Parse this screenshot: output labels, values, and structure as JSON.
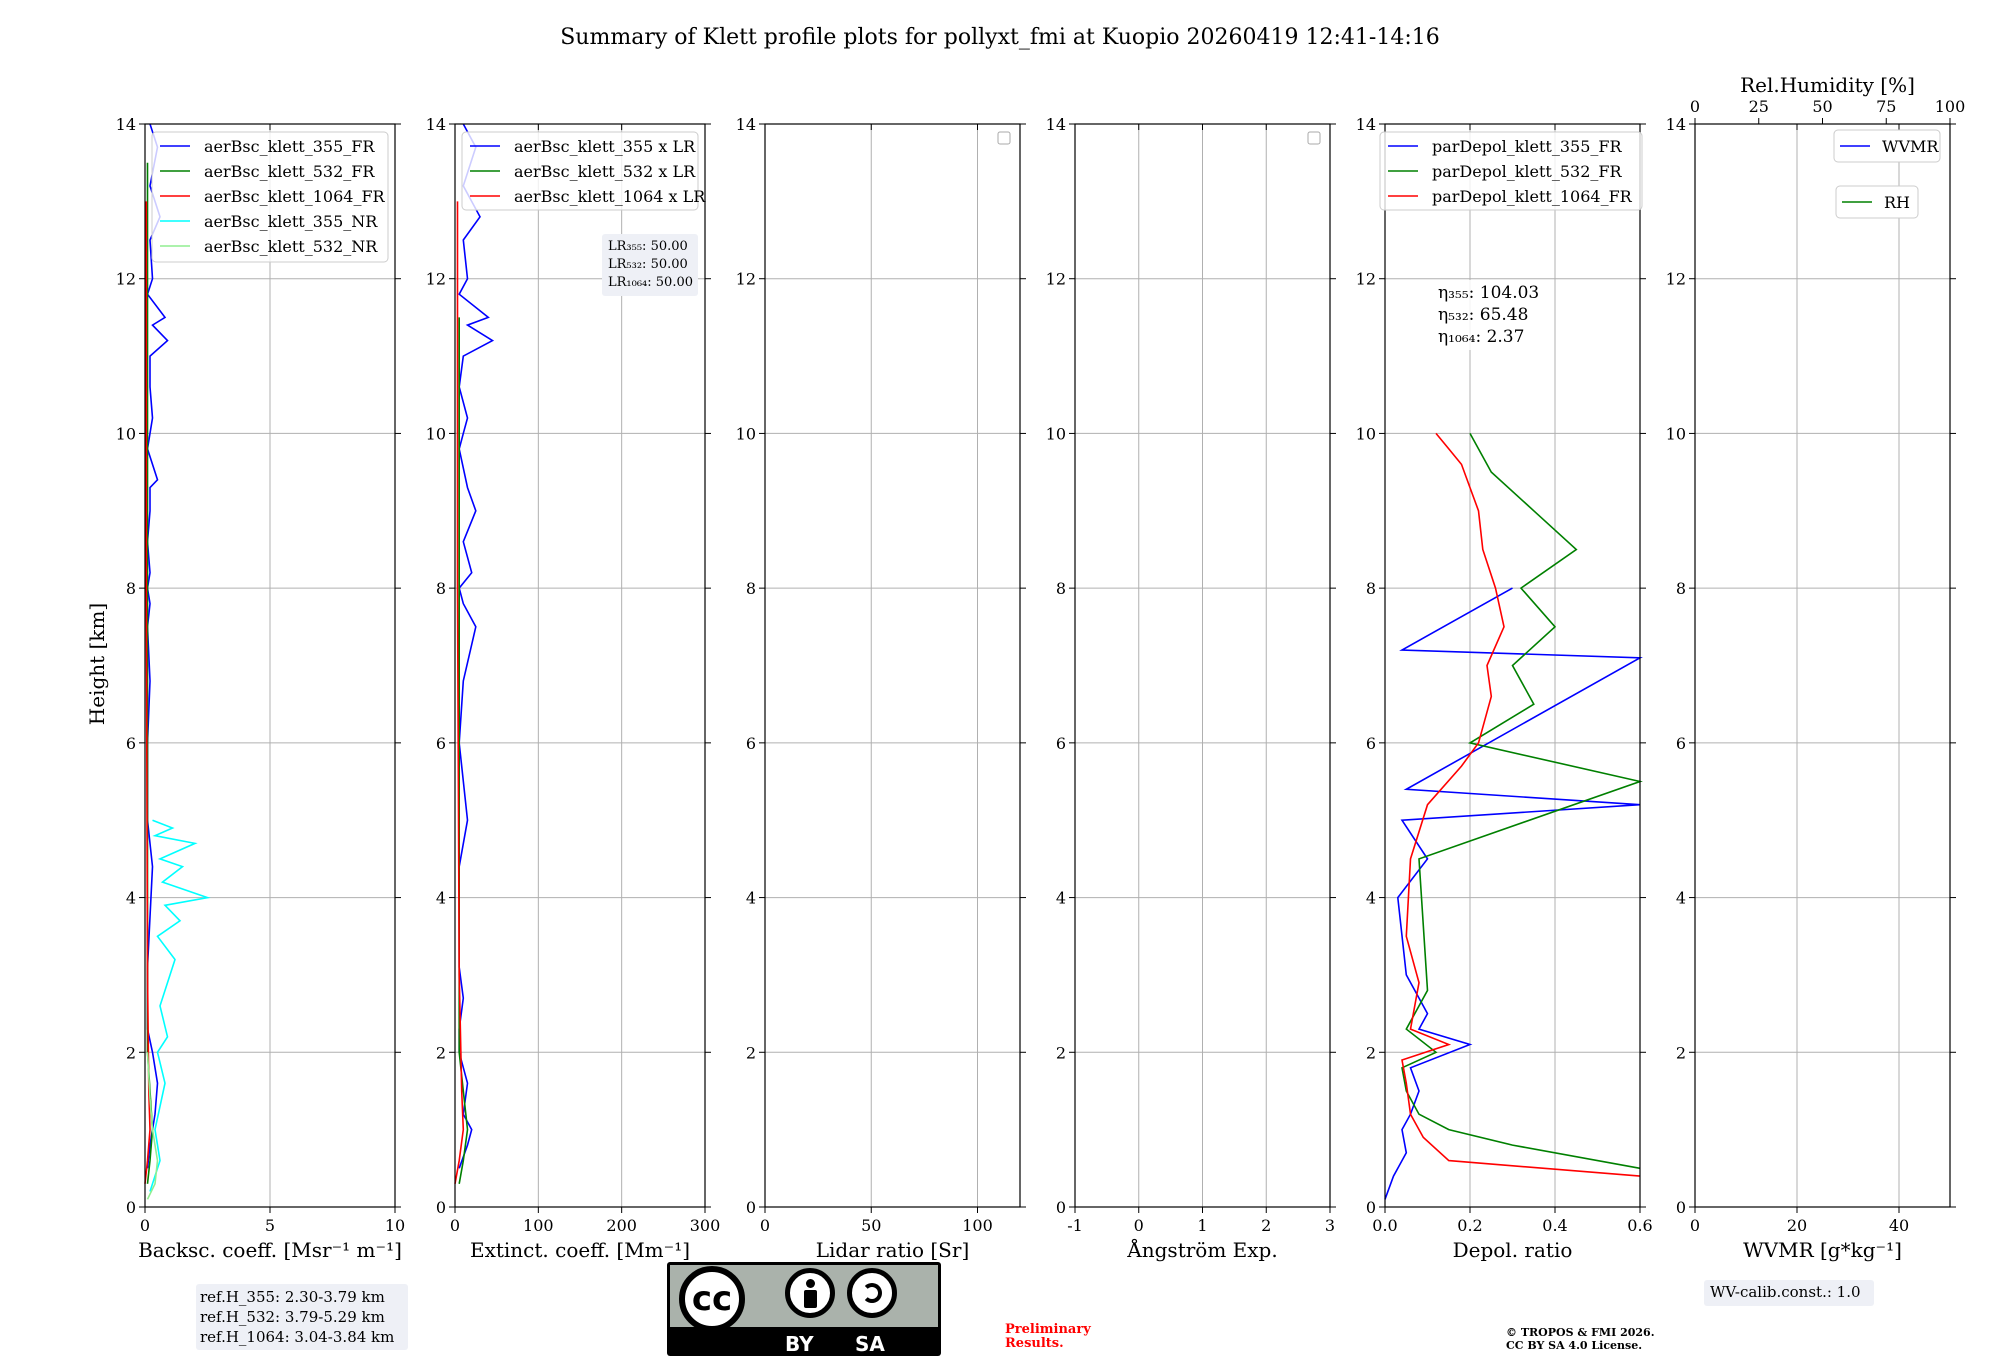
{
  "title": "Summary of Klett profile plots for pollyxt_fmi at Kuopio 20260419 12:41-14:16",
  "y_axis_label": "Height [km]",
  "chart_data": [
    {
      "type": "line",
      "panel": "backscatter",
      "xlabel": "Backsc. coeff. [Msr⁻¹ m⁻¹]",
      "xlim": [
        0,
        10
      ],
      "ylim": [
        0,
        14
      ],
      "xticks": [
        0,
        5,
        10
      ],
      "yticks": [
        0,
        2,
        4,
        6,
        8,
        10,
        12,
        14
      ],
      "legend": [
        "aerBsc_klett_355_FR",
        "aerBsc_klett_532_FR",
        "aerBsc_klett_1064_FR",
        "aerBsc_klett_355_NR",
        "aerBsc_klett_532_NR"
      ],
      "series": [
        {
          "name": "aerBsc_klett_355_FR",
          "color": "#0000ff",
          "x": [
            0.1,
            0.2,
            0.3,
            0.4,
            0.5,
            0.3,
            0.1,
            0.1,
            0.1,
            0.3,
            0.1,
            0.1,
            0.2,
            0.1,
            0.2,
            0.1,
            0.2,
            0.1,
            0.2,
            0.2,
            0.5,
            0.1,
            0.2,
            0.3,
            0.2,
            0.2,
            0.9,
            0.3,
            0.8,
            0.1,
            0.3,
            0.2,
            0.6,
            0.2,
            0.5,
            0.2
          ],
          "y": [
            0.5,
            0.8,
            1.0,
            1.2,
            1.6,
            2.0,
            2.3,
            2.7,
            3.1,
            4.4,
            5.0,
            6.0,
            6.8,
            7.5,
            7.8,
            8.0,
            8.2,
            8.6,
            9.0,
            9.3,
            9.4,
            9.8,
            10.0,
            10.2,
            10.6,
            11.0,
            11.2,
            11.4,
            11.5,
            11.8,
            12.0,
            12.5,
            12.8,
            13.2,
            13.7,
            14.0
          ]
        },
        {
          "name": "aerBsc_klett_532_FR",
          "color": "#008000",
          "x": [
            0.1,
            0.2,
            0.3,
            0.2,
            0.1,
            0.1,
            0.1,
            0.1,
            0.1
          ],
          "y": [
            0.3,
            0.6,
            1.0,
            1.5,
            2.0,
            4.0,
            7.8,
            11.5,
            13.5
          ]
        },
        {
          "name": "aerBsc_klett_1064_FR",
          "color": "#ff0000",
          "x": [
            0.0,
            0.1,
            0.2,
            0.15,
            0.1,
            0.05,
            0.05
          ],
          "y": [
            0.3,
            0.6,
            1.0,
            1.5,
            3.0,
            8.0,
            13.0
          ]
        },
        {
          "name": "aerBsc_klett_355_NR",
          "color": "#00ffff",
          "x": [
            0.2,
            0.6,
            0.4,
            0.8,
            0.5,
            0.9,
            0.6,
            1.2,
            0.5,
            1.4,
            0.8,
            2.5,
            0.7,
            1.5,
            0.6,
            2.0,
            0.4,
            1.1,
            0.3
          ],
          "y": [
            0.2,
            0.6,
            1.0,
            1.6,
            2.0,
            2.2,
            2.6,
            3.2,
            3.5,
            3.7,
            3.9,
            4.0,
            4.2,
            4.4,
            4.5,
            4.7,
            4.8,
            4.9,
            5.0
          ]
        },
        {
          "name": "aerBsc_klett_532_NR",
          "color": "#90ee90",
          "x": [
            0.1,
            0.4,
            0.5,
            0.3,
            0.2,
            0.1
          ],
          "y": [
            0.1,
            0.3,
            0.6,
            1.0,
            1.4,
            2.0
          ]
        }
      ],
      "reference_heights": [
        "ref.H_355: 2.30-3.79 km",
        "ref.H_532: 3.79-5.29 km",
        "ref.H_1064: 3.04-3.84 km"
      ]
    },
    {
      "type": "line",
      "panel": "extinction",
      "xlabel": "Extinct. coeff. [Mm⁻¹]",
      "xlim": [
        0,
        300
      ],
      "ylim": [
        0,
        14
      ],
      "xticks": [
        0,
        100,
        200,
        300
      ],
      "yticks": [
        0,
        2,
        4,
        6,
        8,
        10,
        12,
        14
      ],
      "legend": [
        "aerBsc_klett_355 x LR",
        "aerBsc_klett_532 x LR",
        "aerBsc_klett_1064 x LR"
      ],
      "series": [
        {
          "name": "aerBsc_klett_355 x LR",
          "color": "#0000ff",
          "x": [
            5,
            15,
            20,
            10,
            15,
            5,
            5,
            10,
            5,
            5,
            15,
            5,
            10,
            25,
            10,
            5,
            20,
            10,
            25,
            15,
            5,
            10,
            15,
            5,
            10,
            45,
            15,
            40,
            5,
            15,
            10,
            30,
            10,
            25,
            10
          ],
          "y": [
            0.5,
            0.8,
            1.0,
            1.2,
            1.6,
            2.0,
            2.3,
            2.7,
            3.1,
            4.4,
            5.0,
            6.0,
            6.8,
            7.5,
            7.8,
            8.0,
            8.2,
            8.6,
            9.0,
            9.3,
            9.8,
            10.0,
            10.2,
            10.6,
            11.0,
            11.2,
            11.4,
            11.5,
            11.8,
            12.0,
            12.5,
            12.8,
            13.2,
            13.7,
            14.0
          ]
        },
        {
          "name": "aerBsc_klett_532 x LR",
          "color": "#008000",
          "x": [
            5,
            10,
            15,
            10,
            5,
            5,
            5,
            5
          ],
          "y": [
            0.3,
            0.6,
            1.0,
            1.5,
            2.0,
            4.0,
            7.8,
            11.5
          ]
        },
        {
          "name": "aerBsc_klett_1064 x LR",
          "color": "#ff0000",
          "x": [
            0,
            5,
            10,
            8,
            5,
            3,
            3
          ],
          "y": [
            0.3,
            0.6,
            1.0,
            1.5,
            3.0,
            8.0,
            13.0
          ]
        }
      ],
      "lidar_ratios": [
        "LR₃₅₅: 50.00",
        "LR₅₃₂: 50.00",
        "LR₁₀₆₄: 50.00"
      ]
    },
    {
      "type": "line",
      "panel": "lidar_ratio",
      "xlabel": "Lidar ratio [Sr]",
      "xlim": [
        0,
        120
      ],
      "ylim": [
        0,
        14
      ],
      "xticks": [
        0,
        50,
        100
      ],
      "yticks": [
        0,
        2,
        4,
        6,
        8,
        10,
        12,
        14
      ],
      "series": []
    },
    {
      "type": "line",
      "panel": "angstrom",
      "xlabel": "Ångström Exp.",
      "xlim": [
        -1,
        3
      ],
      "ylim": [
        0,
        14
      ],
      "xticks": [
        -1,
        0,
        1,
        2,
        3
      ],
      "yticks": [
        0,
        2,
        4,
        6,
        8,
        10,
        12,
        14
      ],
      "series": []
    },
    {
      "type": "line",
      "panel": "depolarization",
      "xlabel": "Depol. ratio",
      "xlim": [
        0,
        0.6
      ],
      "ylim": [
        0,
        14
      ],
      "xticks": [
        0.0,
        0.2,
        0.4,
        0.6
      ],
      "yticks": [
        0,
        2,
        4,
        6,
        8,
        10,
        12,
        14
      ],
      "legend": [
        "parDepol_klett_355_FR",
        "parDepol_klett_532_FR",
        "parDepol_klett_1064_FR"
      ],
      "series": [
        {
          "name": "parDepol_klett_355_FR",
          "color": "#0000ff",
          "x": [
            0.0,
            0.02,
            0.05,
            0.04,
            0.06,
            0.08,
            0.06,
            0.2,
            0.08,
            0.1,
            0.05,
            0.03,
            0.1,
            0.04,
            0.6,
            0.05,
            0.6,
            0.04,
            0.3
          ],
          "y": [
            0.1,
            0.4,
            0.7,
            1.0,
            1.2,
            1.5,
            1.8,
            2.1,
            2.3,
            2.5,
            3.0,
            4.0,
            4.5,
            5.0,
            5.2,
            5.4,
            7.1,
            7.2,
            8.0
          ]
        },
        {
          "name": "parDepol_klett_532_FR",
          "color": "#008000",
          "x": [
            0.6,
            0.3,
            0.15,
            0.08,
            0.05,
            0.04,
            0.12,
            0.05,
            0.1,
            0.08,
            0.6,
            0.2,
            0.35,
            0.3,
            0.4,
            0.32,
            0.45,
            0.35,
            0.25,
            0.2
          ],
          "y": [
            0.5,
            0.8,
            1.0,
            1.2,
            1.5,
            1.8,
            2.0,
            2.3,
            2.8,
            4.5,
            5.5,
            6.0,
            6.5,
            7.0,
            7.5,
            8.0,
            8.5,
            9.0,
            9.5,
            10.0
          ]
        },
        {
          "name": "parDepol_klett_1064_FR",
          "color": "#ff0000",
          "x": [
            0.6,
            0.15,
            0.09,
            0.06,
            0.05,
            0.04,
            0.15,
            0.06,
            0.08,
            0.05,
            0.06,
            0.1,
            0.18,
            0.22,
            0.25,
            0.24,
            0.28,
            0.26,
            0.23,
            0.22,
            0.2,
            0.18,
            0.15,
            0.12
          ],
          "y": [
            0.4,
            0.6,
            0.9,
            1.2,
            1.6,
            1.9,
            2.1,
            2.3,
            2.9,
            3.5,
            4.5,
            5.2,
            5.7,
            6.0,
            6.6,
            7.0,
            7.5,
            8.0,
            8.5,
            9.0,
            9.3,
            9.6,
            9.8,
            10.0
          ]
        }
      ],
      "eta_values": [
        "η₃₅₅: 104.03",
        "η₅₃₂: 65.48",
        "η₁₀₆₄: 2.37"
      ]
    },
    {
      "type": "line",
      "panel": "water_vapour",
      "xlabel": "WVMR [g*kg⁻¹]",
      "top_xlabel": "Rel.Humidity [%]",
      "xlim": [
        0,
        50
      ],
      "ylim": [
        0,
        14
      ],
      "xticks": [
        0,
        20,
        40
      ],
      "top_xticks": [
        0,
        25,
        50,
        75,
        100
      ],
      "yticks": [
        0,
        2,
        4,
        6,
        8,
        10,
        12,
        14
      ],
      "legend": [
        "WVMR",
        "RH"
      ],
      "series": [],
      "calibration": "WV-calib.const.: 1.0"
    }
  ],
  "footer": {
    "preliminary": [
      "Preliminary",
      "Results."
    ],
    "copyright": [
      "© TROPOS & FMI 2026.",
      "CC BY SA 4.0 License."
    ],
    "license_badge": {
      "cc": "cc",
      "by": "BY",
      "sa": "SA"
    }
  },
  "colors": {
    "blue": "#0000ff",
    "green": "#008000",
    "red": "#ff0000",
    "cyan": "#00ffff",
    "lightgreen": "#90ee90",
    "grid": "#b0b0b0",
    "preliminary": "#ff0000"
  }
}
